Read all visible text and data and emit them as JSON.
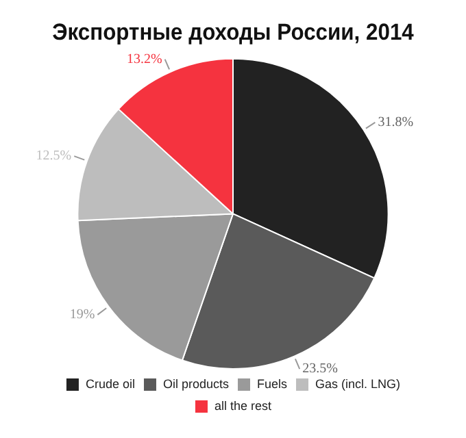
{
  "chart_data": {
    "type": "pie",
    "title": "Экспортные доходы России, 2014",
    "categories": [
      "Crude oil",
      "Oil products",
      "Fuels",
      "Gas (incl. LNG)",
      "all the rest"
    ],
    "values": [
      31.8,
      23.5,
      19,
      12.5,
      13.2
    ],
    "colors": [
      "#222222",
      "#5a5a5a",
      "#9a9a9a",
      "#bdbdbd",
      "#f5333f"
    ],
    "value_labels": [
      "31.8%",
      "23.5%",
      "19%",
      "12.5%",
      "13.2%"
    ],
    "legend": "bottom"
  }
}
